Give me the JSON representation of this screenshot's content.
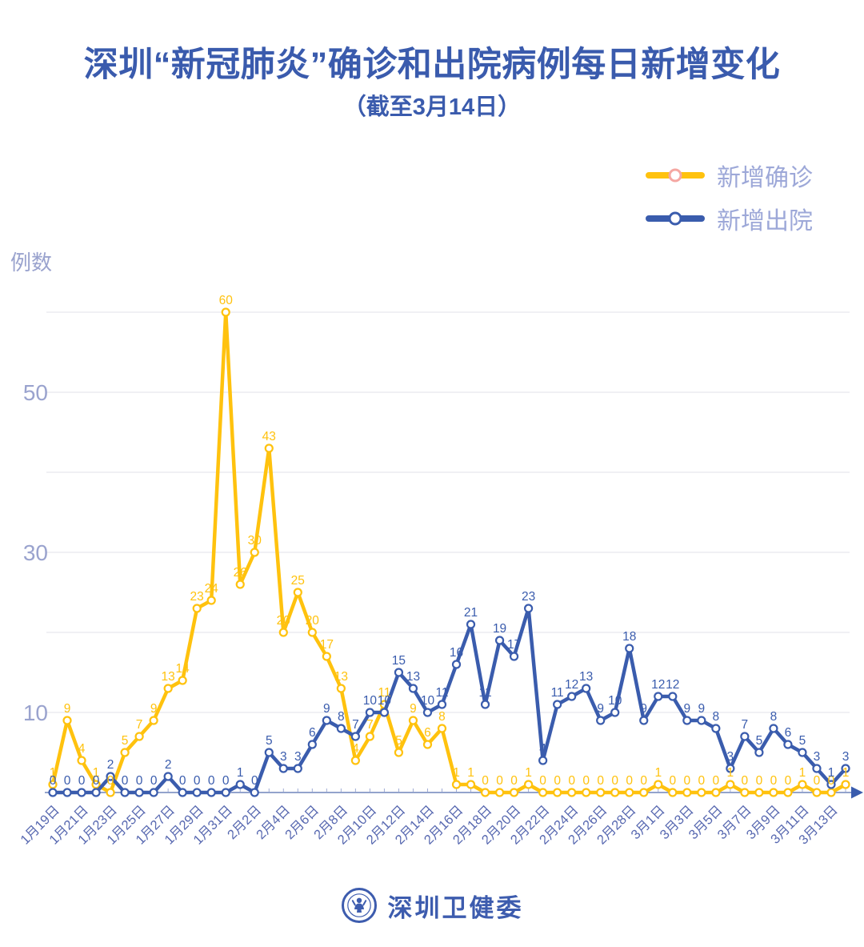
{
  "header": {
    "title": "深圳“新冠肺炎”确诊和出院病例每日新增变化",
    "subtitle": "（截至3月14日）"
  },
  "legend": {
    "items": [
      {
        "label": "新增确诊",
        "line_color": "#FFC20E",
        "ring_color": "#F5A7A2"
      },
      {
        "label": "新增出院",
        "line_color": "#3A5CAD",
        "ring_color": "#3A5CAD"
      }
    ]
  },
  "colors": {
    "title": "#3A5BAD",
    "confirmed": "#FFC20E",
    "discharged": "#3A5CAD",
    "grid": "#E2E2E8",
    "axis_line": "#93A3CC",
    "axis_arrow": "#3A5CAD",
    "tick": "#9FABD4",
    "y_tick_label": "#9AA3CE",
    "date_label": "#5768B0",
    "legend_text": "#9DA8D8"
  },
  "chart_data": {
    "type": "line",
    "title": "深圳“新冠肺炎”确诊和出院病例每日新增变化（截至3月14日）",
    "ylabel": "例数",
    "xlabel": "",
    "ylim": [
      0,
      62
    ],
    "yticks": [
      10,
      30,
      50
    ],
    "grid_values": [
      10,
      20,
      30,
      40,
      50,
      60
    ],
    "x_label_every": 2,
    "legend_position": "top-right",
    "categories": [
      "1月19日",
      "1月20日",
      "1月21日",
      "1月22日",
      "1月23日",
      "1月24日",
      "1月25日",
      "1月26日",
      "1月27日",
      "1月28日",
      "1月29日",
      "1月30日",
      "1月31日",
      "2月1日",
      "2月2日",
      "2月3日",
      "2月4日",
      "2月5日",
      "2月6日",
      "2月7日",
      "2月8日",
      "2月9日",
      "2月10日",
      "2月11日",
      "2月12日",
      "2月13日",
      "2月14日",
      "2月15日",
      "2月16日",
      "2月17日",
      "2月18日",
      "2月19日",
      "2月20日",
      "2月21日",
      "2月22日",
      "2月23日",
      "2月24日",
      "2月25日",
      "2月26日",
      "2月27日",
      "2月28日",
      "2月29日",
      "3月1日",
      "3月2日",
      "3月3日",
      "3月4日",
      "3月5日",
      "3月6日",
      "3月7日",
      "3月8日",
      "3月9日",
      "3月10日",
      "3月11日",
      "3月12日",
      "3月13日",
      "3月14日"
    ],
    "series": [
      {
        "name": "新增确诊",
        "color": "#FFC20E",
        "values": [
          1,
          9,
          4,
          1,
          0,
          5,
          7,
          9,
          13,
          14,
          23,
          24,
          60,
          26,
          30,
          43,
          20,
          25,
          20,
          17,
          13,
          4,
          7,
          11,
          5,
          9,
          6,
          8,
          1,
          1,
          0,
          0,
          0,
          1,
          0,
          0,
          0,
          0,
          0,
          0,
          0,
          0,
          1,
          0,
          0,
          0,
          0,
          1,
          0,
          0,
          0,
          0,
          1,
          0,
          0,
          1
        ]
      },
      {
        "name": "新增出院",
        "color": "#3A5CAD",
        "values": [
          0,
          0,
          0,
          0,
          2,
          0,
          0,
          0,
          2,
          0,
          0,
          0,
          0,
          1,
          0,
          5,
          3,
          3,
          6,
          9,
          8,
          7,
          10,
          10,
          15,
          13,
          10,
          11,
          16,
          21,
          11,
          19,
          17,
          23,
          4,
          11,
          12,
          13,
          9,
          10,
          18,
          9,
          12,
          12,
          9,
          9,
          8,
          3,
          7,
          5,
          8,
          6,
          5,
          3,
          1,
          3
        ]
      }
    ]
  },
  "footer": {
    "name": "深圳卫健委",
    "logo": "shenzhen-health-logo"
  }
}
